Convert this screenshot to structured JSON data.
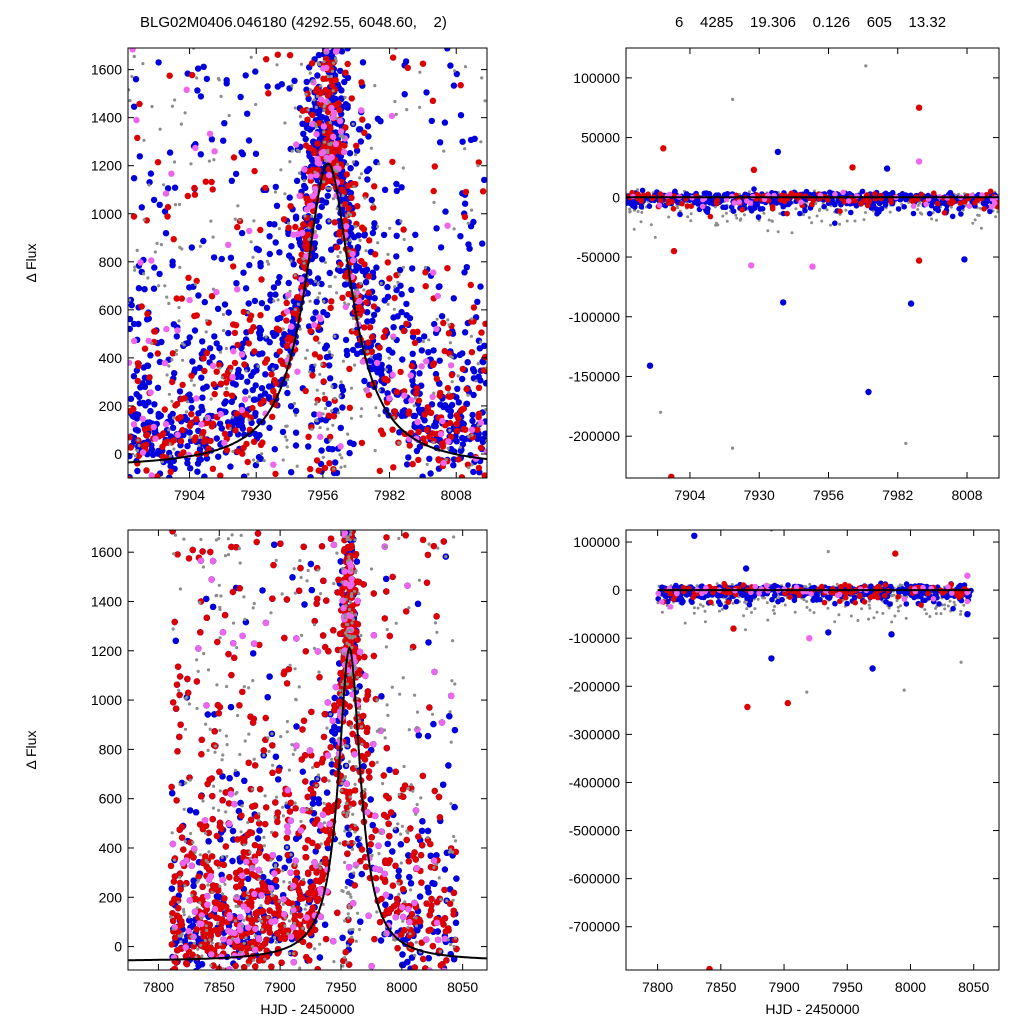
{
  "header": {
    "left": "BLG02M0406.046180 (4292.55, 6048.60,    2)",
    "right": "6    4285    19.306    0.126    605    13.32"
  },
  "colors": {
    "series1": "#0000dd",
    "series2": "#dd0000",
    "series3": "#ee66ee",
    "series4": "#8c8c8c",
    "model": "#000000"
  },
  "chart_data": [
    {
      "type": "scatter",
      "panel": "top-left",
      "xlabel": "",
      "ylabel": "Δ Flux",
      "xlim": [
        7880,
        8020
      ],
      "ylim": [
        -100,
        1690
      ],
      "xticks": [
        7904,
        7930,
        7956,
        7982,
        8008
      ],
      "yticks": [
        0,
        200,
        400,
        600,
        800,
        1000,
        1200,
        1400,
        1600
      ],
      "model": {
        "t0": 7958,
        "peak": 1270,
        "tE": 11
      },
      "series": [
        {
          "color": "series1",
          "point_count": 1400,
          "clusters": [
            [
              7880,
              7888
            ],
            [
              7892,
              7898
            ],
            [
              7899,
              7904
            ],
            [
              7907,
              7913
            ],
            [
              7915,
              7918
            ],
            [
              7919,
              7923
            ],
            [
              7926,
              7930
            ],
            [
              7934,
              7950
            ],
            [
              7950,
              7968
            ],
            [
              7968,
              7990
            ],
            [
              7992,
              8020
            ]
          ]
        },
        {
          "color": "series2",
          "point_count": 600
        },
        {
          "color": "series3",
          "point_count": 150
        },
        {
          "color": "series4",
          "point_count": 400
        }
      ]
    },
    {
      "type": "scatter",
      "panel": "top-right",
      "xlabel": "",
      "ylabel": "",
      "xlim": [
        7880,
        8020
      ],
      "ylim": [
        -235000,
        125000
      ],
      "xticks": [
        7904,
        7930,
        7956,
        7982,
        8008
      ],
      "yticks": [
        100000,
        50000,
        0,
        -50000,
        -100000,
        -150000,
        -200000
      ],
      "outliers": [
        {
          "x": 7894,
          "y": 41000,
          "color": "series2"
        },
        {
          "x": 7889,
          "y": -141000,
          "color": "series1"
        },
        {
          "x": 7928,
          "y": 23000,
          "color": "series2"
        },
        {
          "x": 7937,
          "y": 38000,
          "color": "series1"
        },
        {
          "x": 7927,
          "y": -57000,
          "color": "series3"
        },
        {
          "x": 7939,
          "y": -88000,
          "color": "series1"
        },
        {
          "x": 7950,
          "y": -58000,
          "color": "series3"
        },
        {
          "x": 7965,
          "y": 25000,
          "color": "series2"
        },
        {
          "x": 7971,
          "y": -163000,
          "color": "series1"
        },
        {
          "x": 7978,
          "y": 24000,
          "color": "series1"
        },
        {
          "x": 7990,
          "y": 75000,
          "color": "series2"
        },
        {
          "x": 7990,
          "y": 30000,
          "color": "series3"
        },
        {
          "x": 7987,
          "y": -89000,
          "color": "series1"
        },
        {
          "x": 7990,
          "y": -53000,
          "color": "series2"
        },
        {
          "x": 8007,
          "y": -52000,
          "color": "series1"
        },
        {
          "x": 7897,
          "y": -234000,
          "color": "series2"
        },
        {
          "x": 7898,
          "y": -45000,
          "color": "series2"
        },
        {
          "x": 7970,
          "y": 110000,
          "color": "series4"
        },
        {
          "x": 7920,
          "y": 82000,
          "color": "series4"
        },
        {
          "x": 7920,
          "y": -210000,
          "color": "series4"
        },
        {
          "x": 7985,
          "y": -206000,
          "color": "series4"
        },
        {
          "x": 7893,
          "y": -180000,
          "color": "series4"
        }
      ]
    },
    {
      "type": "scatter",
      "panel": "bottom-left",
      "xlabel": "HJD - 2450000",
      "ylabel": "Δ Flux",
      "xlim": [
        7775,
        8070
      ],
      "ylim": [
        -95,
        1690
      ],
      "xticks": [
        7800,
        7850,
        7900,
        7950,
        8000,
        8050
      ],
      "yticks": [
        0,
        200,
        400,
        600,
        800,
        1000,
        1200,
        1400,
        1600
      ],
      "model": {
        "t0": 7957,
        "peak": 1270,
        "tE": 11
      },
      "series": [
        {
          "color": "series1",
          "point_count": 2600
        },
        {
          "color": "series2",
          "point_count": 1000
        },
        {
          "color": "series3",
          "point_count": 200
        },
        {
          "color": "series4",
          "point_count": 500
        }
      ]
    },
    {
      "type": "scatter",
      "panel": "bottom-right",
      "xlabel": "HJD - 2450000",
      "ylabel": "",
      "xlim": [
        7775,
        8070
      ],
      "ylim": [
        -790000,
        125000
      ],
      "xticks": [
        7800,
        7850,
        7900,
        7950,
        8000,
        8050
      ],
      "yticks": [
        100000,
        0,
        -100000,
        -200000,
        -300000,
        -400000,
        -500000,
        -600000,
        -700000
      ],
      "outliers": [
        {
          "x": 7829,
          "y": 113000,
          "color": "series1"
        },
        {
          "x": 7841,
          "y": -788000,
          "color": "series2"
        },
        {
          "x": 7871,
          "y": -243000,
          "color": "series2"
        },
        {
          "x": 7903,
          "y": -235000,
          "color": "series2"
        },
        {
          "x": 7890,
          "y": -142000,
          "color": "series1"
        },
        {
          "x": 7970,
          "y": -163000,
          "color": "series1"
        },
        {
          "x": 7985,
          "y": -92000,
          "color": "series1"
        },
        {
          "x": 7988,
          "y": 76000,
          "color": "series2"
        },
        {
          "x": 7870,
          "y": 45000,
          "color": "series1"
        },
        {
          "x": 7935,
          "y": -88000,
          "color": "series1"
        },
        {
          "x": 8045,
          "y": 30000,
          "color": "series3"
        },
        {
          "x": 8045,
          "y": -50000,
          "color": "series1"
        },
        {
          "x": 7860,
          "y": -80000,
          "color": "series2"
        },
        {
          "x": 7920,
          "y": -100000,
          "color": "series3"
        },
        {
          "x": 7890,
          "y": 125000,
          "color": "series4"
        },
        {
          "x": 7935,
          "y": 80000,
          "color": "series4"
        },
        {
          "x": 7918,
          "y": -212000,
          "color": "series4"
        },
        {
          "x": 7995,
          "y": -208000,
          "color": "series4"
        },
        {
          "x": 8040,
          "y": -150000,
          "color": "series4"
        }
      ]
    }
  ]
}
